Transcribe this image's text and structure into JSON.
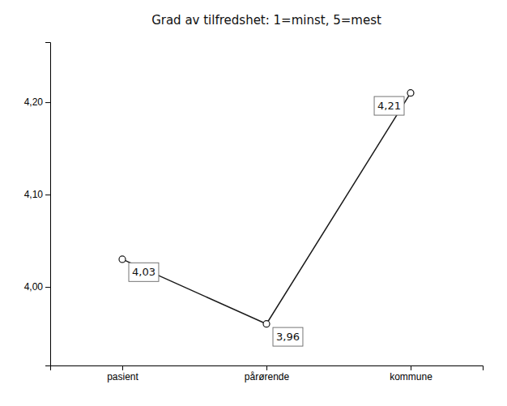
{
  "chart_data": {
    "type": "line",
    "title": "Grad av tilfredshet:  1=minst, 5=mest",
    "categories": [
      "pasient",
      "pårørende",
      "kommune"
    ],
    "values": [
      4.03,
      3.96,
      4.21
    ],
    "value_labels": [
      "4,03",
      "3,96",
      "4,21"
    ],
    "data_labels": true,
    "color": "#1a1a1a",
    "marker": "circle",
    "ylim": [
      3.915,
      4.265
    ],
    "yticks": [
      {
        "value": 4.0,
        "label": "4,00"
      },
      {
        "value": 4.1,
        "label": "4,10"
      },
      {
        "value": 4.2,
        "label": "4,20"
      }
    ],
    "grid": false
  }
}
